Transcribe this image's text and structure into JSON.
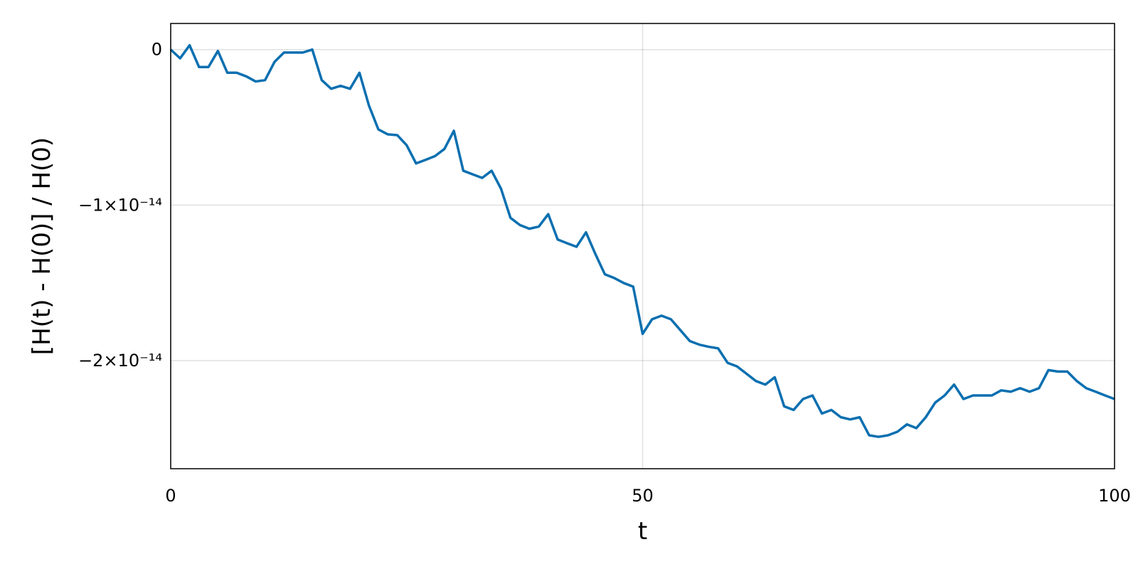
{
  "chart_data": {
    "type": "line",
    "xlabel": "t",
    "ylabel": "[H(t) - H(0)] / H(0)",
    "color": "#0a6fb0",
    "grid": true,
    "xlim": [
      0,
      100
    ],
    "xticks": [
      0,
      50,
      100
    ],
    "ylim": [
      -2.695e-14,
      1.68e-15
    ],
    "yticks": [
      0,
      {
        "value": -1e-14,
        "label": "−1×10⁻¹⁴"
      },
      {
        "value": -2e-14,
        "label": "−2×10⁻¹⁴"
      }
    ],
    "x": [
      0,
      1,
      2,
      3,
      4,
      5,
      6,
      7,
      8,
      9,
      10,
      11,
      12,
      13,
      14,
      15,
      16,
      17,
      18,
      19,
      20,
      21,
      22,
      23,
      24,
      25,
      26,
      27,
      28,
      29,
      30,
      31,
      32,
      33,
      34,
      35,
      36,
      37,
      38,
      39,
      40,
      41,
      42,
      43,
      44,
      45,
      46,
      47,
      48,
      49,
      50,
      51,
      52,
      53,
      54,
      55,
      56,
      57,
      58,
      59,
      60,
      61,
      62,
      63,
      64,
      65,
      66,
      67,
      68,
      69,
      70,
      71,
      72,
      73,
      74,
      75,
      76,
      77,
      78,
      79,
      80,
      81,
      82,
      83,
      84,
      85,
      86,
      87,
      88,
      89,
      90,
      91,
      92,
      93,
      94,
      95,
      96,
      97,
      98,
      99,
      100
    ],
    "values": [
      0,
      -5.6e-16,
      2.8e-16,
      -1.12e-15,
      -1.12e-15,
      -9e-17,
      -1.49e-15,
      -1.49e-15,
      -1.72e-15,
      -2.05e-15,
      -1.96e-15,
      -7.9e-16,
      -1.9e-16,
      -1.9e-16,
      -1.9e-16,
      0,
      -1.96e-15,
      -2.52e-15,
      -2.33e-15,
      -2.52e-15,
      -1.49e-15,
      -3.59e-15,
      -5.13e-15,
      -5.45e-15,
      -5.5e-15,
      -6.15e-15,
      -7.32e-15,
      -7.09e-15,
      -6.85e-15,
      -6.39e-15,
      -5.22e-15,
      -7.79e-15,
      -8.02e-15,
      -8.25e-15,
      -7.79e-15,
      -8.95e-15,
      -1.082e-14,
      -1.128e-14,
      -1.152e-14,
      -1.138e-14,
      -1.058e-14,
      -1.221e-14,
      -1.245e-14,
      -1.268e-14,
      -1.175e-14,
      -1.315e-14,
      -1.445e-14,
      -1.469e-14,
      -1.501e-14,
      -1.524e-14,
      -1.828e-14,
      -1.734e-14,
      -1.711e-14,
      -1.734e-14,
      -1.804e-14,
      -1.874e-14,
      -1.897e-14,
      -1.911e-14,
      -1.921e-14,
      -2.014e-14,
      -2.037e-14,
      -2.084e-14,
      -2.131e-14,
      -2.154e-14,
      -2.107e-14,
      -2.294e-14,
      -2.317e-14,
      -2.247e-14,
      -2.224e-14,
      -2.34e-14,
      -2.317e-14,
      -2.364e-14,
      -2.378e-14,
      -2.364e-14,
      -2.48e-14,
      -2.49e-14,
      -2.48e-14,
      -2.457e-14,
      -2.41e-14,
      -2.434e-14,
      -2.364e-14,
      -2.27e-14,
      -2.224e-14,
      -2.154e-14,
      -2.247e-14,
      -2.224e-14,
      -2.224e-14,
      -2.224e-14,
      -2.191e-14,
      -2.2e-14,
      -2.177e-14,
      -2.2e-14,
      -2.177e-14,
      -2.061e-14,
      -2.07e-14,
      -2.07e-14,
      -2.131e-14,
      -2.177e-14,
      -2.2e-14,
      -2.224e-14,
      -2.247e-14
    ]
  }
}
